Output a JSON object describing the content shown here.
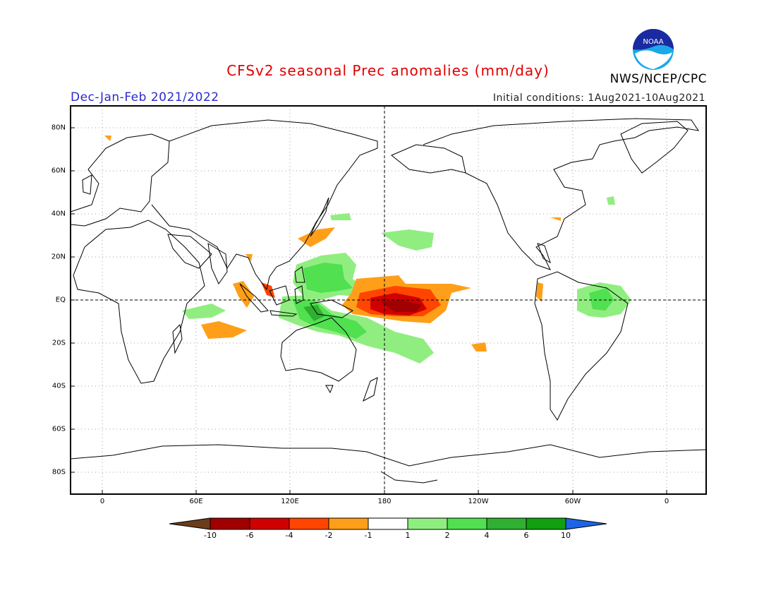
{
  "title": "CFSv2 seasonal Prec anomalies (mm/day)",
  "season": "Dec-Jan-Feb 2021/2022",
  "initial_conditions": "Initial conditions: 1Aug2021-10Aug2021",
  "organization": "NWS/NCEP/CPC",
  "logo": {
    "text": "NOAA",
    "icon": "noaa-logo-icon"
  },
  "map": {
    "projection": "cylindrical-equidistant",
    "center_longitude": 180,
    "lat_ticks": [
      "80N",
      "60N",
      "40N",
      "20N",
      "EQ",
      "20S",
      "40S",
      "60S",
      "80S"
    ],
    "lon_ticks": [
      "0",
      "60E",
      "120E",
      "180",
      "120W",
      "60W",
      "0"
    ],
    "grid": "dotted",
    "reference_lines": [
      "equator",
      "dateline"
    ]
  },
  "colorbar": {
    "labels": [
      "-10",
      "-6",
      "-4",
      "-2",
      "-1",
      "1",
      "2",
      "4",
      "6",
      "10"
    ],
    "colors": [
      "#6b3d1a",
      "#a00000",
      "#d00000",
      "#ff4500",
      "#ff9f19",
      "#ffffff",
      "#90ee80",
      "#50e050",
      "#30b030",
      "#10a010",
      "#1e64e6"
    ]
  },
  "anomaly_colors": {
    "wet_light": "#90ee80",
    "wet_mid": "#50e050",
    "wet_strong": "#30b030",
    "dry_light": "#ff9f19",
    "dry_mid": "#ff4500",
    "dry_strong": "#d00000",
    "dry_extreme": "#a00000"
  }
}
